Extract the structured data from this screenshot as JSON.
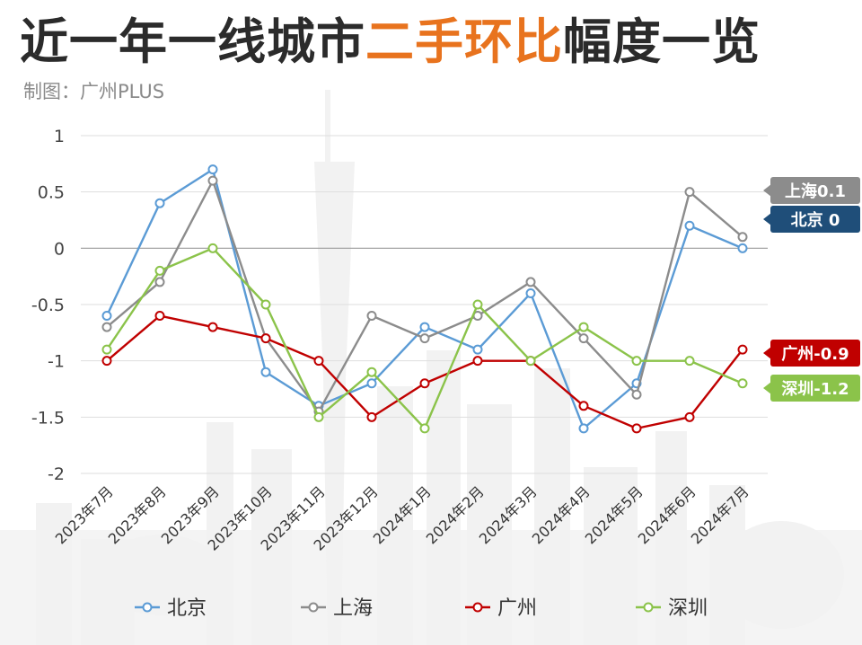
{
  "header": {
    "title_part1": "近一年一线城市",
    "title_highlight": "二手环比",
    "title_part2": "幅度一览",
    "subtitle": "制图：广州PLUS"
  },
  "chart_data": {
    "type": "line",
    "title": "近一年一线城市二手环比幅度一览",
    "categories": [
      "2023年7月",
      "2023年8月",
      "2023年9月",
      "2023年10月",
      "2023年11月",
      "2023年12月",
      "2024年1月",
      "2024年2月",
      "2024年3月",
      "2024年4月",
      "2024年5月",
      "2024年6月",
      "2024年7月"
    ],
    "ylim": [
      -2,
      1
    ],
    "yticks": [
      1,
      0.5,
      0,
      -0.5,
      -1,
      -1.5,
      -2
    ],
    "ytick_labels": [
      "1",
      "0.5",
      "0",
      "-0.5",
      "-1",
      "-1.5",
      "-2"
    ],
    "grid": true,
    "legend_position": "bottom",
    "series": [
      {
        "name": "北京",
        "color": "#5b9bd5",
        "values": [
          -0.6,
          0.4,
          0.7,
          -1.1,
          -1.4,
          -1.2,
          -0.7,
          -0.9,
          -0.4,
          -1.6,
          -1.2,
          0.2,
          0
        ]
      },
      {
        "name": "上海",
        "color": "#8c8c8c",
        "values": [
          -0.7,
          -0.3,
          0.6,
          -0.8,
          -1.45,
          -0.6,
          -0.8,
          -0.6,
          -0.3,
          -0.8,
          -1.3,
          0.5,
          0.1
        ]
      },
      {
        "name": "广州",
        "color": "#c00000",
        "values": [
          -1,
          -0.6,
          -0.7,
          -0.8,
          -1,
          -1.5,
          -1.2,
          -1,
          -1,
          -1.4,
          -1.6,
          -1.5,
          -0.9
        ]
      },
      {
        "name": "深圳",
        "color": "#8bc34a",
        "values": [
          -0.9,
          -0.2,
          0,
          -0.5,
          -1.5,
          -1.1,
          -1.6,
          -0.5,
          -1,
          -0.7,
          -1,
          -1,
          -1.2
        ]
      }
    ],
    "end_labels": [
      {
        "text": "上海0.1",
        "color": "#8c8c8c",
        "value": 0.1
      },
      {
        "text": "北京 0",
        "color": "#1f4e79",
        "value": 0
      },
      {
        "text": "广州-0.9",
        "color": "#c00000",
        "value": -0.9
      },
      {
        "text": "深圳-1.2",
        "color": "#8bc34a",
        "value": -1.2
      }
    ]
  }
}
